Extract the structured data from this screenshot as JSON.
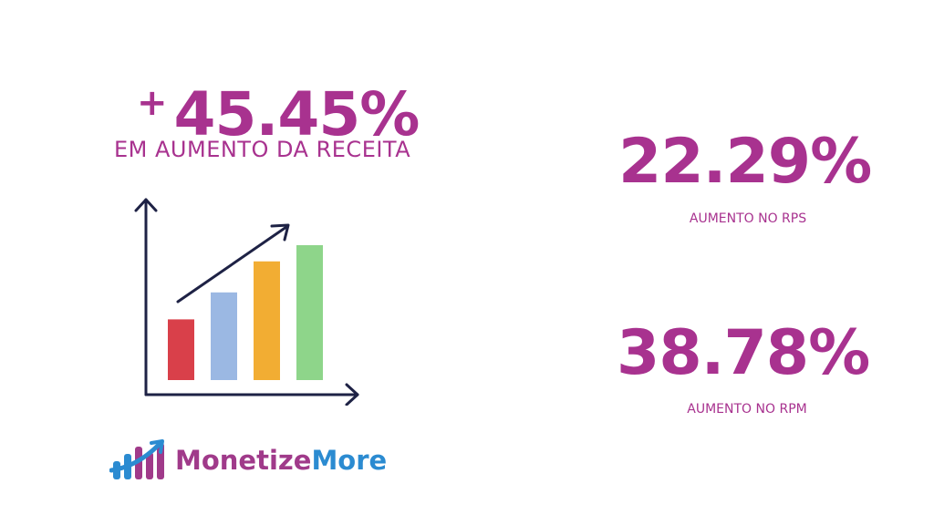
{
  "headline": {
    "plus": "+",
    "value": "45.45%",
    "subtitle": "EM AUMENTO DA RECEITA"
  },
  "stats": [
    {
      "value": "22.29%",
      "label": "AUMENTO NO RPS"
    },
    {
      "value": "38.78%",
      "label": "AUMENTO NO RPM"
    }
  ],
  "illustration": {
    "icon": "bar-chart-growth-icon",
    "bar_levels": [
      0.45,
      0.65,
      0.88,
      1.0
    ],
    "bar_colors": [
      "#d9404a",
      "#9bb8e3",
      "#f2ad33",
      "#8ed58a"
    ],
    "axis_color": "#1e2245"
  },
  "brand": {
    "name_part1": "Monetize",
    "name_part2": "More",
    "accent": "#a8328f",
    "secondary": "#2b8bd1"
  }
}
